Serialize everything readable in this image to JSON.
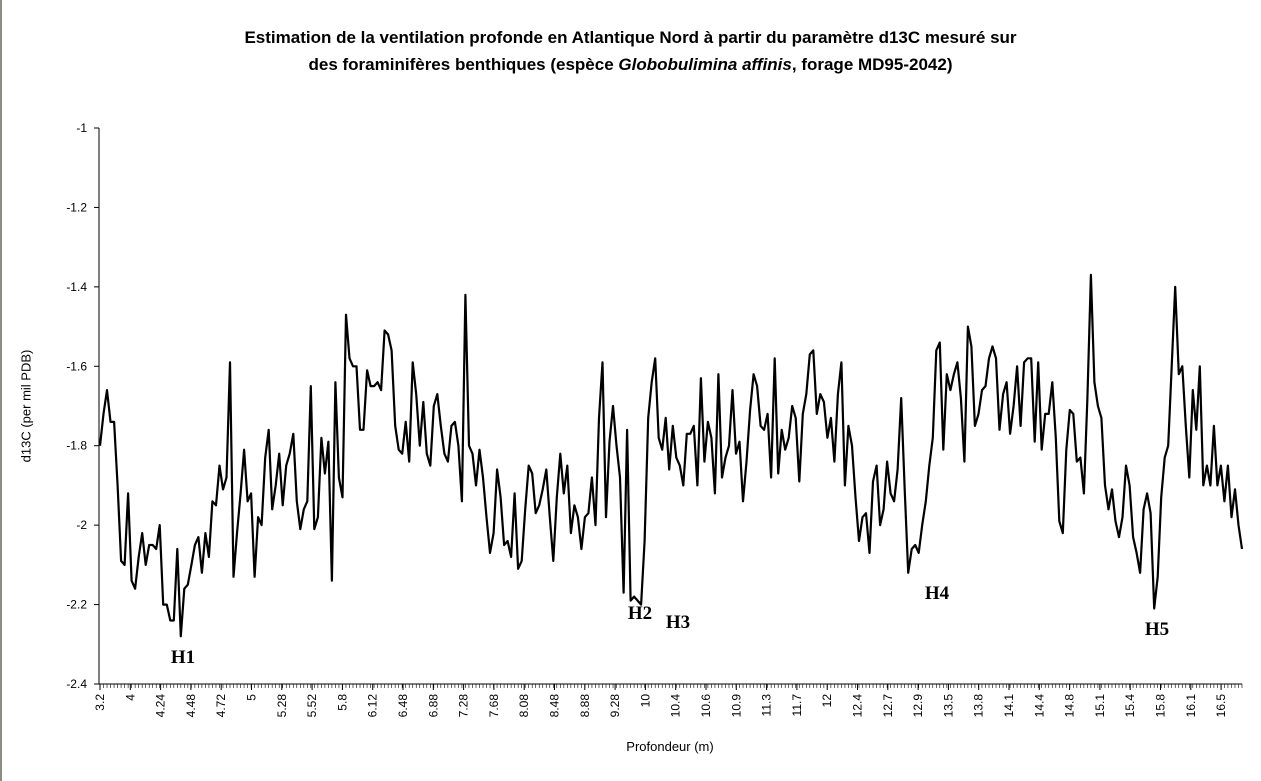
{
  "chart_data": {
    "type": "line",
    "title_line1": "Estimation de la ventilation profonde en Atlantique Nord à partir du paramètre d13C mesuré sur",
    "title_line2_pre": "des foraminifères benthiques (espèce ",
    "title_line2_species": "Globobulimina affinis",
    "title_line2_post": ", forage MD95-2042)",
    "xlabel": "Profondeur (m)",
    "ylabel": "d13C (per mil PDB)",
    "ylim": [
      -2.4,
      -1
    ],
    "yticks": [
      "-1",
      "-1.2",
      "-1.4",
      "-1.6",
      "-1.8",
      "-2",
      "-2.2",
      "-2.4"
    ],
    "ytick_values": [
      -1,
      -1.2,
      -1.4,
      -1.6,
      -1.8,
      -2,
      -2.2,
      -2.4
    ],
    "xtick_labels": [
      "3.2",
      "4",
      "4.24",
      "4.48",
      "4.72",
      "5",
      "5.28",
      "5.52",
      "5.8",
      "6.12",
      "6.48",
      "6.88",
      "7.28",
      "7.68",
      "8.08",
      "8.48",
      "8.88",
      "9.28",
      "10",
      "10.4",
      "10.6",
      "10.9",
      "11.3",
      "11.7",
      "12",
      "12.4",
      "12.7",
      "12.9",
      "13.5",
      "13.8",
      "14.1",
      "14.4",
      "14.8",
      "15.1",
      "15.4",
      "15.8",
      "16.1",
      "16.5"
    ],
    "grid": false,
    "line_color": "#000000",
    "annotations": [
      {
        "text": "H1",
        "near_depth": "4.4",
        "value": -2.28
      },
      {
        "text": "H2",
        "near_depth": "10.1",
        "value": -2.17
      },
      {
        "text": "H3",
        "near_depth": "10.3",
        "value": -2.2
      },
      {
        "text": "H4",
        "near_depth": "13.2",
        "value": -2.12
      },
      {
        "text": "H5",
        "near_depth": "15.7",
        "value": -2.21
      }
    ],
    "values": [
      -1.8,
      -1.72,
      -1.66,
      -1.74,
      -1.74,
      -1.9,
      -2.09,
      -2.1,
      -1.92,
      -2.14,
      -2.16,
      -2.08,
      -2.02,
      -2.1,
      -2.05,
      -2.05,
      -2.06,
      -2.0,
      -2.2,
      -2.2,
      -2.24,
      -2.24,
      -2.06,
      -2.28,
      -2.16,
      -2.15,
      -2.1,
      -2.05,
      -2.03,
      -2.12,
      -2.02,
      -2.08,
      -1.94,
      -1.95,
      -1.85,
      -1.91,
      -1.88,
      -1.59,
      -2.13,
      -2.02,
      -1.92,
      -1.81,
      -1.94,
      -1.92,
      -2.13,
      -1.98,
      -2.0,
      -1.83,
      -1.76,
      -1.96,
      -1.9,
      -1.82,
      -1.95,
      -1.85,
      -1.82,
      -1.77,
      -1.94,
      -2.01,
      -1.96,
      -1.94,
      -1.65,
      -2.01,
      -1.98,
      -1.78,
      -1.87,
      -1.79,
      -2.14,
      -1.64,
      -1.88,
      -1.93,
      -1.47,
      -1.58,
      -1.6,
      -1.6,
      -1.76,
      -1.76,
      -1.61,
      -1.65,
      -1.65,
      -1.64,
      -1.66,
      -1.51,
      -1.52,
      -1.56,
      -1.75,
      -1.81,
      -1.82,
      -1.74,
      -1.84,
      -1.59,
      -1.67,
      -1.8,
      -1.69,
      -1.82,
      -1.85,
      -1.7,
      -1.67,
      -1.75,
      -1.82,
      -1.84,
      -1.75,
      -1.74,
      -1.8,
      -1.94,
      -1.42,
      -1.8,
      -1.82,
      -1.9,
      -1.81,
      -1.88,
      -1.98,
      -2.07,
      -2.02,
      -1.86,
      -1.93,
      -2.05,
      -2.04,
      -2.08,
      -1.92,
      -2.11,
      -2.09,
      -1.96,
      -1.85,
      -1.87,
      -1.97,
      -1.95,
      -1.91,
      -1.86,
      -1.98,
      -2.09,
      -1.93,
      -1.82,
      -1.92,
      -1.85,
      -2.02,
      -1.95,
      -1.98,
      -2.06,
      -1.98,
      -1.97,
      -1.88,
      -2.0,
      -1.73,
      -1.59,
      -1.98,
      -1.79,
      -1.7,
      -1.8,
      -1.88,
      -2.17,
      -1.76,
      -2.19,
      -2.18,
      -2.19,
      -2.2,
      -2.04,
      -1.73,
      -1.64,
      -1.58,
      -1.78,
      -1.81,
      -1.73,
      -1.86,
      -1.75,
      -1.83,
      -1.85,
      -1.9,
      -1.77,
      -1.77,
      -1.75,
      -1.9,
      -1.63,
      -1.84,
      -1.74,
      -1.78,
      -1.92,
      -1.62,
      -1.88,
      -1.83,
      -1.8,
      -1.66,
      -1.82,
      -1.79,
      -1.94,
      -1.84,
      -1.71,
      -1.62,
      -1.65,
      -1.75,
      -1.76,
      -1.72,
      -1.88,
      -1.58,
      -1.87,
      -1.76,
      -1.81,
      -1.78,
      -1.7,
      -1.73,
      -1.89,
      -1.72,
      -1.67,
      -1.57,
      -1.56,
      -1.72,
      -1.67,
      -1.69,
      -1.78,
      -1.73,
      -1.84,
      -1.67,
      -1.59,
      -1.9,
      -1.75,
      -1.8,
      -1.93,
      -2.04,
      -1.98,
      -1.97,
      -2.07,
      -1.89,
      -1.85,
      -2.0,
      -1.96,
      -1.84,
      -1.92,
      -1.94,
      -1.86,
      -1.68,
      -1.91,
      -2.12,
      -2.06,
      -2.05,
      -2.07,
      -2.0,
      -1.94,
      -1.85,
      -1.78,
      -1.56,
      -1.54,
      -1.81,
      -1.62,
      -1.66,
      -1.62,
      -1.59,
      -1.68,
      -1.84,
      -1.5,
      -1.55,
      -1.75,
      -1.72,
      -1.66,
      -1.65,
      -1.58,
      -1.55,
      -1.58,
      -1.76,
      -1.67,
      -1.64,
      -1.77,
      -1.7,
      -1.6,
      -1.75,
      -1.59,
      -1.58,
      -1.58,
      -1.79,
      -1.59,
      -1.81,
      -1.72,
      -1.72,
      -1.64,
      -1.78,
      -1.99,
      -2.02,
      -1.81,
      -1.71,
      -1.72,
      -1.84,
      -1.83,
      -1.92,
      -1.68,
      -1.37,
      -1.64,
      -1.7,
      -1.73,
      -1.9,
      -1.96,
      -1.91,
      -1.99,
      -2.03,
      -1.98,
      -1.85,
      -1.9,
      -2.03,
      -2.07,
      -2.12,
      -1.96,
      -1.92,
      -1.97,
      -2.21,
      -2.13,
      -1.93,
      -1.83,
      -1.8,
      -1.6,
      -1.4,
      -1.62,
      -1.6,
      -1.75,
      -1.88,
      -1.66,
      -1.76,
      -1.6,
      -1.9,
      -1.85,
      -1.9,
      -1.75,
      -1.9,
      -1.85,
      -1.94,
      -1.85,
      -1.98,
      -1.91,
      -2.0,
      -2.06
    ]
  }
}
